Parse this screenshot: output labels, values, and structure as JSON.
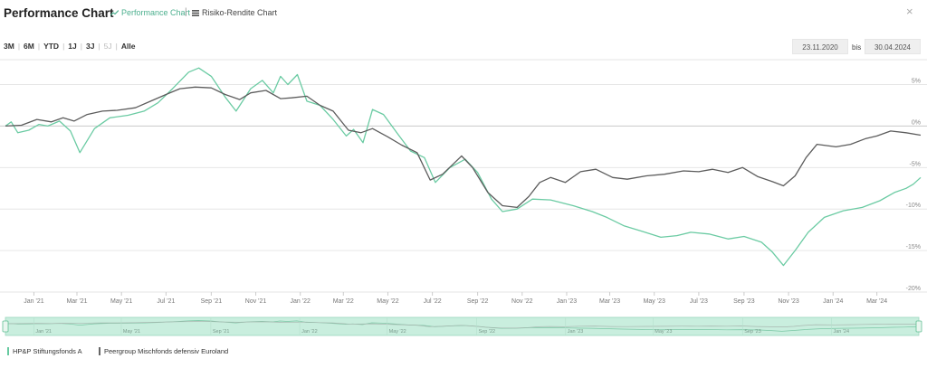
{
  "header": {
    "title": "Performance Chart",
    "tab_performance": "Performance Chart",
    "tab_separator": "|",
    "tab_risk": "Risiko-Rendite Chart",
    "close": "×"
  },
  "ranges": [
    {
      "label": "3M",
      "enabled": true
    },
    {
      "label": "6M",
      "enabled": true
    },
    {
      "label": "YTD",
      "enabled": true
    },
    {
      "label": "1J",
      "enabled": true
    },
    {
      "label": "3J",
      "enabled": true
    },
    {
      "label": "5J",
      "enabled": false
    },
    {
      "label": "Alle",
      "enabled": true
    }
  ],
  "date_range": {
    "from": "23.11.2020",
    "to": "30.04.2024",
    "between": "bis"
  },
  "colors": {
    "fund": "#6bcba3",
    "peer": "#5c5c5c",
    "grid": "#e6e6e6",
    "zero": "#c9c9c9",
    "navigator_bg": "#c9eede"
  },
  "chart_data": {
    "type": "line",
    "title": "",
    "xlabel": "",
    "ylabel": "",
    "ylim": [
      -20,
      8
    ],
    "yticks": [
      5,
      0,
      -5,
      -10,
      -15,
      -20
    ],
    "ytick_labels": [
      "5%",
      "0%",
      "-5%",
      "-10%",
      "-15%",
      "-20%"
    ],
    "xlim": [
      "2020-11-23",
      "2024-04-30"
    ],
    "xticks": [
      "2021-01-01",
      "2021-03-01",
      "2021-05-01",
      "2021-07-01",
      "2021-09-01",
      "2021-11-01",
      "2022-01-01",
      "2022-03-01",
      "2022-05-01",
      "2022-07-01",
      "2022-09-01",
      "2022-11-01",
      "2023-01-01",
      "2023-03-01",
      "2023-05-01",
      "2023-07-01",
      "2023-09-01",
      "2023-11-01",
      "2024-01-01",
      "2024-03-01"
    ],
    "xtick_labels": [
      "Jan '21",
      "Mar '21",
      "May '21",
      "Jul '21",
      "Sep '21",
      "Nov '21",
      "Jan '22",
      "Mar '22",
      "May '22",
      "Jul '22",
      "Sep '22",
      "Nov '22",
      "Jan '23",
      "Mar '23",
      "May '23",
      "Jul '23",
      "Sep '23",
      "Nov '23",
      "Jan '24",
      "Mar '24"
    ],
    "navigator_ticks": [
      "2021-01-01",
      "2021-05-01",
      "2021-09-01",
      "2022-01-01",
      "2022-05-01",
      "2022-09-01",
      "2023-01-01",
      "2023-05-01",
      "2023-09-01",
      "2024-01-01"
    ],
    "navigator_labels": [
      "Jan '21",
      "May '21",
      "Sep '21",
      "Jan '22",
      "May '22",
      "Sep '22",
      "Jan '23",
      "May '23",
      "Sep '23",
      "Jan '24"
    ],
    "series": [
      {
        "name": "HP&P Stiftungsfonds A",
        "points": [
          [
            "2020-11-23",
            0
          ],
          [
            "2020-12-01",
            0.5
          ],
          [
            "2020-12-10",
            -0.8
          ],
          [
            "2020-12-25",
            -0.5
          ],
          [
            "2021-01-08",
            0.2
          ],
          [
            "2021-01-20",
            0
          ],
          [
            "2021-02-05",
            0.6
          ],
          [
            "2021-02-20",
            -0.6
          ],
          [
            "2021-03-05",
            -3.2
          ],
          [
            "2021-03-25",
            -0.3
          ],
          [
            "2021-04-15",
            1.0
          ],
          [
            "2021-05-10",
            1.3
          ],
          [
            "2021-06-01",
            1.8
          ],
          [
            "2021-06-20",
            2.8
          ],
          [
            "2021-07-10",
            4.5
          ],
          [
            "2021-08-01",
            6.5
          ],
          [
            "2021-08-15",
            7.0
          ],
          [
            "2021-09-01",
            6.0
          ],
          [
            "2021-09-20",
            3.5
          ],
          [
            "2021-10-05",
            1.8
          ],
          [
            "2021-10-25",
            4.5
          ],
          [
            "2021-11-10",
            5.5
          ],
          [
            "2021-11-25",
            4.0
          ],
          [
            "2021-12-05",
            6.0
          ],
          [
            "2021-12-15",
            5.0
          ],
          [
            "2021-12-28",
            6.2
          ],
          [
            "2022-01-10",
            3.0
          ],
          [
            "2022-01-28",
            2.5
          ],
          [
            "2022-02-15",
            0.8
          ],
          [
            "2022-03-05",
            -1.2
          ],
          [
            "2022-03-15",
            -0.4
          ],
          [
            "2022-03-28",
            -2.0
          ],
          [
            "2022-04-10",
            2.0
          ],
          [
            "2022-04-25",
            1.4
          ],
          [
            "2022-05-15",
            -1.0
          ],
          [
            "2022-06-01",
            -3.0
          ],
          [
            "2022-06-20",
            -3.8
          ],
          [
            "2022-07-05",
            -6.8
          ],
          [
            "2022-07-25",
            -5.0
          ],
          [
            "2022-08-15",
            -4.0
          ],
          [
            "2022-09-01",
            -5.6
          ],
          [
            "2022-09-20",
            -8.8
          ],
          [
            "2022-10-05",
            -10.3
          ],
          [
            "2022-10-25",
            -10.0
          ],
          [
            "2022-11-15",
            -8.8
          ],
          [
            "2022-12-10",
            -8.9
          ],
          [
            "2023-01-10",
            -9.6
          ],
          [
            "2023-02-05",
            -10.3
          ],
          [
            "2023-02-25",
            -11.0
          ],
          [
            "2023-03-20",
            -12.0
          ],
          [
            "2023-04-15",
            -12.7
          ],
          [
            "2023-05-10",
            -13.4
          ],
          [
            "2023-06-01",
            -13.2
          ],
          [
            "2023-06-20",
            -12.8
          ],
          [
            "2023-07-15",
            -13.0
          ],
          [
            "2023-08-10",
            -13.6
          ],
          [
            "2023-09-01",
            -13.3
          ],
          [
            "2023-09-25",
            -14.0
          ],
          [
            "2023-10-10",
            -15.2
          ],
          [
            "2023-10-25",
            -16.8
          ],
          [
            "2023-11-10",
            -15.0
          ],
          [
            "2023-11-28",
            -12.8
          ],
          [
            "2023-12-20",
            -11.0
          ],
          [
            "2024-01-15",
            -10.2
          ],
          [
            "2024-02-10",
            -9.8
          ],
          [
            "2024-03-05",
            -9.0
          ],
          [
            "2024-03-25",
            -8.0
          ],
          [
            "2024-04-10",
            -7.5
          ],
          [
            "2024-04-20",
            -7.0
          ],
          [
            "2024-04-30",
            -6.2
          ]
        ]
      },
      {
        "name": "Peergroup Mischfonds defensiv Euroland",
        "points": [
          [
            "2020-11-23",
            0
          ],
          [
            "2020-12-15",
            0.1
          ],
          [
            "2021-01-05",
            0.8
          ],
          [
            "2021-01-25",
            0.5
          ],
          [
            "2021-02-10",
            1.0
          ],
          [
            "2021-02-25",
            0.6
          ],
          [
            "2021-03-15",
            1.4
          ],
          [
            "2021-04-05",
            1.8
          ],
          [
            "2021-04-25",
            1.9
          ],
          [
            "2021-05-20",
            2.2
          ],
          [
            "2021-06-10",
            3.0
          ],
          [
            "2021-07-01",
            3.8
          ],
          [
            "2021-07-20",
            4.5
          ],
          [
            "2021-08-10",
            4.7
          ],
          [
            "2021-09-01",
            4.6
          ],
          [
            "2021-09-20",
            3.8
          ],
          [
            "2021-10-10",
            3.2
          ],
          [
            "2021-10-25",
            4.0
          ],
          [
            "2021-11-15",
            4.3
          ],
          [
            "2021-12-05",
            3.3
          ],
          [
            "2021-12-20",
            3.4
          ],
          [
            "2022-01-10",
            3.6
          ],
          [
            "2022-01-28",
            2.5
          ],
          [
            "2022-02-15",
            1.8
          ],
          [
            "2022-03-08",
            -0.5
          ],
          [
            "2022-03-25",
            -0.8
          ],
          [
            "2022-04-10",
            -0.3
          ],
          [
            "2022-05-01",
            -1.3
          ],
          [
            "2022-05-20",
            -2.3
          ],
          [
            "2022-06-10",
            -3.2
          ],
          [
            "2022-06-28",
            -6.5
          ],
          [
            "2022-07-15",
            -5.8
          ],
          [
            "2022-08-10",
            -3.6
          ],
          [
            "2022-08-25",
            -5.0
          ],
          [
            "2022-09-15",
            -8.0
          ],
          [
            "2022-10-05",
            -9.6
          ],
          [
            "2022-10-25",
            -9.8
          ],
          [
            "2022-11-10",
            -8.5
          ],
          [
            "2022-11-25",
            -6.8
          ],
          [
            "2022-12-10",
            -6.2
          ],
          [
            "2022-12-30",
            -6.8
          ],
          [
            "2023-01-20",
            -5.5
          ],
          [
            "2023-02-10",
            -5.2
          ],
          [
            "2023-03-05",
            -6.2
          ],
          [
            "2023-03-25",
            -6.4
          ],
          [
            "2023-04-20",
            -6.0
          ],
          [
            "2023-05-15",
            -5.8
          ],
          [
            "2023-06-10",
            -5.4
          ],
          [
            "2023-07-01",
            -5.5
          ],
          [
            "2023-07-20",
            -5.2
          ],
          [
            "2023-08-10",
            -5.6
          ],
          [
            "2023-08-30",
            -5.0
          ],
          [
            "2023-09-20",
            -6.1
          ],
          [
            "2023-10-10",
            -6.7
          ],
          [
            "2023-10-25",
            -7.2
          ],
          [
            "2023-11-10",
            -6.0
          ],
          [
            "2023-11-25",
            -3.8
          ],
          [
            "2023-12-10",
            -2.2
          ],
          [
            "2024-01-05",
            -2.5
          ],
          [
            "2024-01-25",
            -2.2
          ],
          [
            "2024-02-15",
            -1.5
          ],
          [
            "2024-03-01",
            -1.2
          ],
          [
            "2024-03-20",
            -0.6
          ],
          [
            "2024-04-10",
            -0.8
          ],
          [
            "2024-04-30",
            -1.1
          ]
        ]
      }
    ]
  },
  "legend": {
    "fund": "HP&P Stiftungsfonds A",
    "peer": "Peergroup Mischfonds defensiv Euroland"
  }
}
